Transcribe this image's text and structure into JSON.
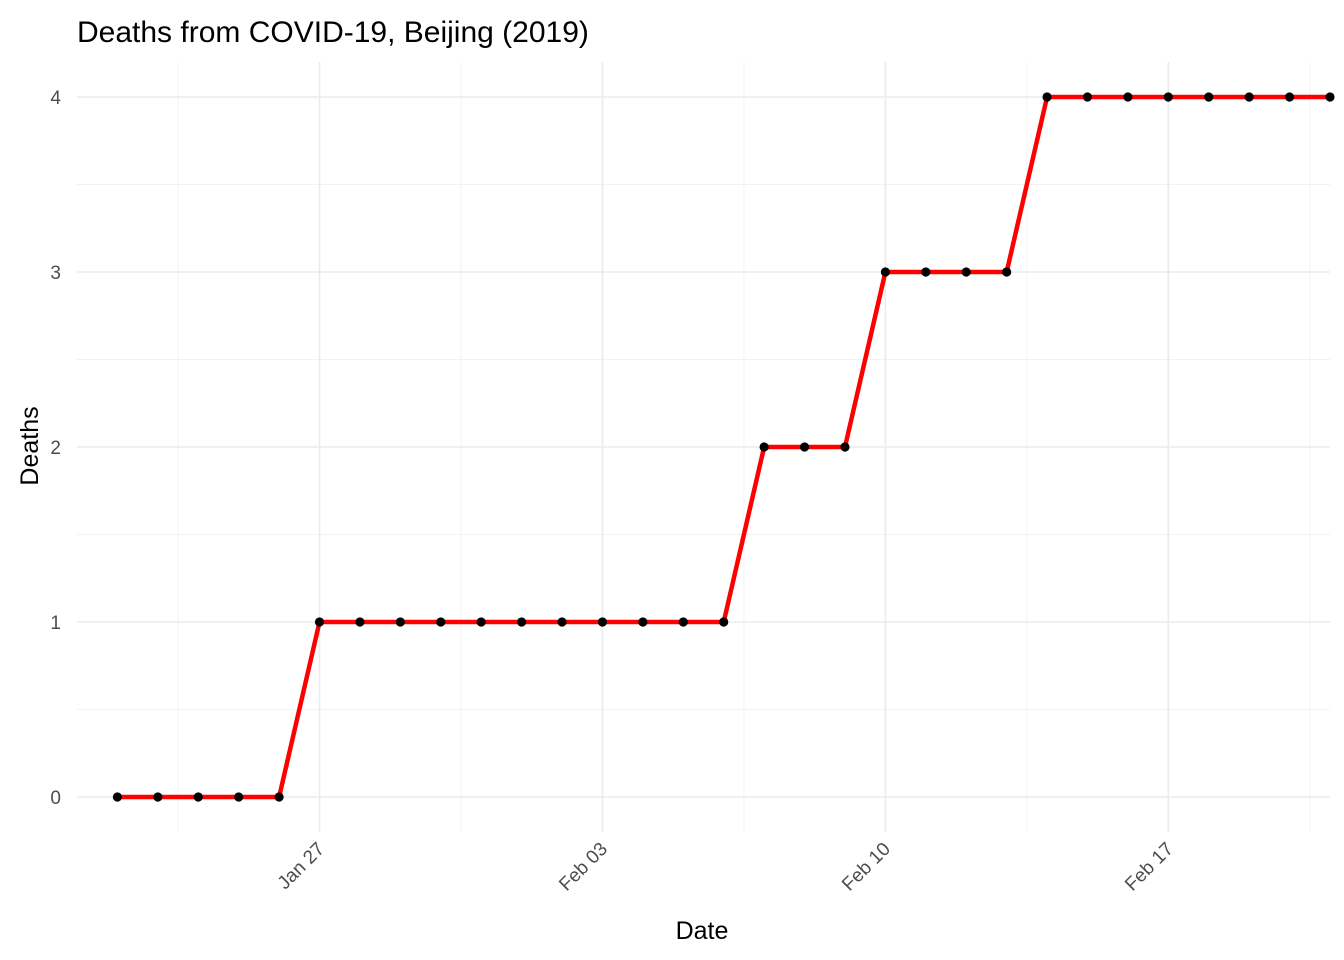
{
  "chart_data": {
    "type": "line",
    "title": "Deaths from COVID-19, Beijing (2019)",
    "xlabel": "Date",
    "ylabel": "Deaths",
    "x_tick_labels": [
      "Jan 27",
      "Feb 03",
      "Feb 10",
      "Feb 17"
    ],
    "x_tick_dates": [
      "2020-01-27",
      "2020-02-03",
      "2020-02-10",
      "2020-02-17"
    ],
    "y_ticks": [
      0,
      1,
      2,
      3,
      4
    ],
    "xlim": [
      "2020-01-21",
      "2020-02-21"
    ],
    "ylim": [
      -0.2,
      4.2
    ],
    "grid": true,
    "legend": "none",
    "line_color": "#ff0000",
    "point_color": "#000000",
    "series": [
      {
        "x": [
          "2020-01-22",
          "2020-01-23",
          "2020-01-24",
          "2020-01-25",
          "2020-01-26",
          "2020-01-27",
          "2020-01-28",
          "2020-01-29",
          "2020-01-30",
          "2020-01-31",
          "2020-02-01",
          "2020-02-02",
          "2020-02-03",
          "2020-02-04",
          "2020-02-05",
          "2020-02-06",
          "2020-02-07",
          "2020-02-08",
          "2020-02-09",
          "2020-02-10",
          "2020-02-11",
          "2020-02-12",
          "2020-02-13",
          "2020-02-14",
          "2020-02-15",
          "2020-02-16",
          "2020-02-17",
          "2020-02-18",
          "2020-02-19",
          "2020-02-20",
          "2020-02-21"
        ],
        "y": [
          0,
          0,
          0,
          0,
          0,
          1,
          1,
          1,
          1,
          1,
          1,
          1,
          1,
          1,
          1,
          1,
          2,
          2,
          2,
          3,
          3,
          3,
          3,
          4,
          4,
          4,
          4,
          4,
          4,
          4,
          4
        ]
      }
    ]
  }
}
